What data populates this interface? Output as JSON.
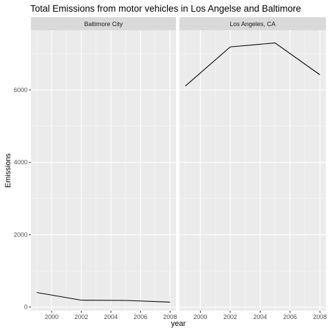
{
  "chart_data": {
    "type": "line",
    "title": "Total Emissions from motor vehicles in Los Angelse and Baltimore",
    "xlabel": "year",
    "ylabel": "Emissions",
    "xlim": [
      1998.6,
      2008.4
    ],
    "ylim": [
      -100,
      7650
    ],
    "x_ticks": [
      2000,
      2002,
      2004,
      2006,
      2008
    ],
    "y_ticks": [
      0,
      2000,
      4000,
      6000
    ],
    "grid": true,
    "facets": [
      {
        "label": "Baltimore City",
        "x": [
          1999,
          2002,
          2005,
          2008
        ],
        "y": [
          403,
          192,
          185,
          139
        ]
      },
      {
        "label": "Los Angeles, CA",
        "x": [
          1999,
          2002,
          2005,
          2008
        ],
        "y": [
          6110,
          7190,
          7300,
          6420
        ]
      }
    ],
    "colors": {
      "panel": "#ebebeb",
      "strip": "#d9d9d9",
      "grid_major": "#ffffff",
      "line": "#000000"
    }
  }
}
